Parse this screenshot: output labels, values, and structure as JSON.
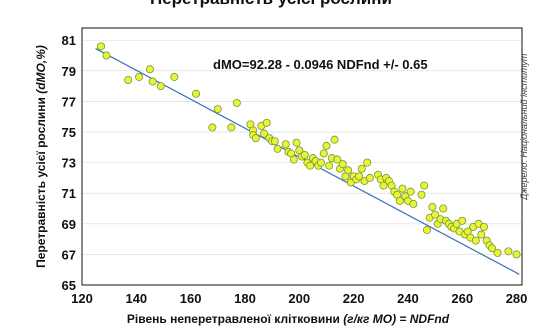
{
  "header": {
    "title_partial": "Перетравність усієї рослини"
  },
  "source_note": "Джерело: Національний інститут",
  "chart_data": {
    "type": "scatter",
    "xlabel_plain": "Рівень неперетравленої клітковини ",
    "xlabel_italic": "(г/кг МО) = NDFnd",
    "ylabel_plain": "Перетравність усієї рослини ",
    "ylabel_italic": "(dMO,%)",
    "annotation": "dMO=92.28 - 0.0946 NDFnd +/- 0.65",
    "xlim": [
      120,
      282
    ],
    "ylim": [
      65,
      81.8
    ],
    "xticks": [
      120,
      140,
      160,
      180,
      200,
      220,
      240,
      260,
      280
    ],
    "yticks": [
      65,
      67,
      69,
      71,
      73,
      75,
      77,
      79,
      81
    ],
    "regression": {
      "intercept": 92.28,
      "slope": -0.0946
    },
    "colors": {
      "point_fill": "#eef234",
      "point_stroke": "#6c9c3c",
      "line": "#3b6fb8",
      "axis": "#111111"
    },
    "points": [
      [
        127,
        80.6
      ],
      [
        129,
        80.0
      ],
      [
        137,
        78.4
      ],
      [
        141,
        78.6
      ],
      [
        145,
        79.1
      ],
      [
        146,
        78.3
      ],
      [
        149,
        78.0
      ],
      [
        154,
        78.6
      ],
      [
        162,
        77.5
      ],
      [
        168,
        75.3
      ],
      [
        170,
        76.5
      ],
      [
        175,
        75.3
      ],
      [
        177,
        76.9
      ],
      [
        182,
        75.5
      ],
      [
        183,
        75.1
      ],
      [
        183,
        74.8
      ],
      [
        184,
        74.6
      ],
      [
        186,
        75.4
      ],
      [
        187,
        74.9
      ],
      [
        188,
        75.6
      ],
      [
        189,
        74.6
      ],
      [
        190,
        74.4
      ],
      [
        191,
        74.4
      ],
      [
        192,
        73.9
      ],
      [
        195,
        74.2
      ],
      [
        196,
        73.7
      ],
      [
        197,
        73.6
      ],
      [
        198,
        73.2
      ],
      [
        199,
        74.3
      ],
      [
        200,
        73.8
      ],
      [
        201,
        73.4
      ],
      [
        202,
        73.5
      ],
      [
        203,
        73.0
      ],
      [
        204,
        72.8
      ],
      [
        205,
        73.3
      ],
      [
        206,
        73.1
      ],
      [
        207,
        72.8
      ],
      [
        208,
        73.0
      ],
      [
        209,
        73.6
      ],
      [
        210,
        74.1
      ],
      [
        211,
        72.8
      ],
      [
        212,
        73.3
      ],
      [
        213,
        74.5
      ],
      [
        214,
        73.2
      ],
      [
        215,
        72.6
      ],
      [
        216,
        72.9
      ],
      [
        217,
        72.1
      ],
      [
        218,
        72.5
      ],
      [
        219,
        71.7
      ],
      [
        220,
        72.1
      ],
      [
        221,
        71.9
      ],
      [
        222,
        72.1
      ],
      [
        223,
        72.6
      ],
      [
        224,
        71.8
      ],
      [
        225,
        73.0
      ],
      [
        226,
        72.0
      ],
      [
        229,
        72.2
      ],
      [
        230,
        71.9
      ],
      [
        231,
        71.5
      ],
      [
        232,
        72.0
      ],
      [
        233,
        71.8
      ],
      [
        234,
        71.5
      ],
      [
        235,
        71.1
      ],
      [
        236,
        70.9
      ],
      [
        237,
        70.5
      ],
      [
        238,
        71.3
      ],
      [
        239,
        70.8
      ],
      [
        240,
        70.5
      ],
      [
        241,
        71.1
      ],
      [
        242,
        70.3
      ],
      [
        245,
        70.9
      ],
      [
        246,
        71.5
      ],
      [
        247,
        68.6
      ],
      [
        248,
        69.4
      ],
      [
        249,
        70.1
      ],
      [
        250,
        69.6
      ],
      [
        251,
        69.0
      ],
      [
        252,
        69.3
      ],
      [
        253,
        70.0
      ],
      [
        254,
        69.2
      ],
      [
        255,
        69.0
      ],
      [
        256,
        68.8
      ],
      [
        257,
        68.7
      ],
      [
        258,
        69.0
      ],
      [
        259,
        68.5
      ],
      [
        260,
        69.2
      ],
      [
        261,
        68.3
      ],
      [
        262,
        68.5
      ],
      [
        263,
        68.1
      ],
      [
        264,
        68.8
      ],
      [
        265,
        67.9
      ],
      [
        266,
        69.0
      ],
      [
        267,
        68.3
      ],
      [
        268,
        68.8
      ],
      [
        269,
        67.9
      ],
      [
        270,
        67.6
      ],
      [
        271,
        67.4
      ],
      [
        273,
        67.1
      ],
      [
        277,
        67.2
      ],
      [
        280,
        67.0
      ]
    ]
  }
}
